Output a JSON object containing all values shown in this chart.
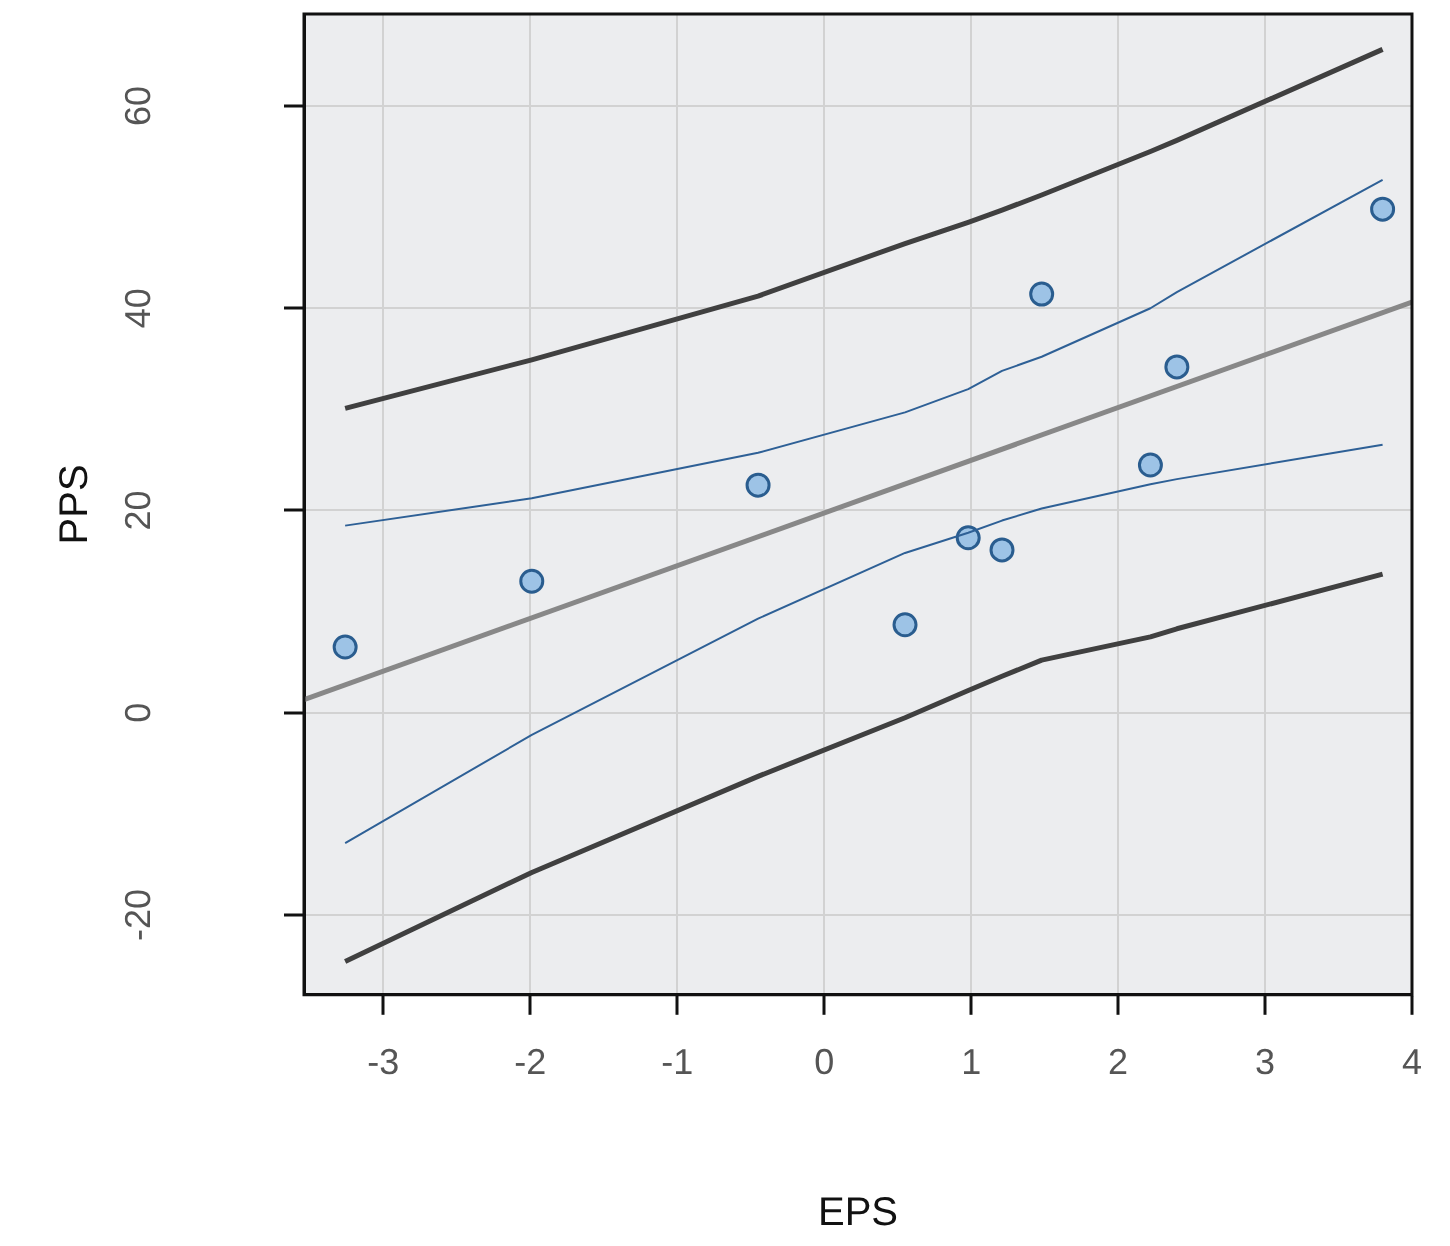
{
  "chart_data": {
    "type": "scatter",
    "xlabel": "EPS",
    "ylabel": "PPS",
    "xlim": [
      -3.54,
      4.0
    ],
    "ylim": [
      -27.9,
      69.1
    ],
    "xticks": [
      -3,
      -2,
      -1,
      0,
      1,
      2,
      3,
      4
    ],
    "yticks": [
      -20,
      0,
      20,
      40,
      60
    ],
    "grid": true,
    "legend": false,
    "series": [
      {
        "type": "line",
        "color": "#888888",
        "x": [
          -3.54,
          4.0
        ],
        "values": [
          1.3,
          40.6
        ]
      },
      {
        "type": "line",
        "color": "#404040",
        "x": [
          -3.26,
          -1.99,
          -0.45,
          0.55,
          0.98,
          1.21,
          1.48,
          2.22,
          2.4,
          3.8
        ],
        "values": [
          30.1,
          34.9,
          41.2,
          46.4,
          48.5,
          49.7,
          51.2,
          55.5,
          56.6,
          65.6
        ]
      },
      {
        "type": "line",
        "color": "#404040",
        "x": [
          -3.26,
          -1.99,
          -0.45,
          0.55,
          0.98,
          1.21,
          1.48,
          2.22,
          2.4,
          3.8
        ],
        "values": [
          -24.6,
          -15.8,
          -6.3,
          -0.5,
          2.2,
          3.6,
          5.2,
          7.5,
          8.3,
          13.7
        ]
      },
      {
        "type": "line",
        "color": "#2e6096",
        "x": [
          -3.26,
          -1.99,
          -0.45,
          0.55,
          0.98,
          1.21,
          1.48,
          2.22,
          2.4,
          3.8
        ],
        "values": [
          18.5,
          21.2,
          25.7,
          29.7,
          32,
          33.8,
          35.2,
          40,
          41.6,
          52.7
        ]
      },
      {
        "type": "line",
        "color": "#2e6096",
        "x": [
          -3.26,
          -1.99,
          -0.45,
          0.55,
          0.98,
          1.21,
          1.48,
          2.22,
          2.4,
          3.8
        ],
        "values": [
          -12.9,
          -2.2,
          9.3,
          15.8,
          17.8,
          19,
          20.2,
          22.6,
          23.1,
          26.5
        ]
      },
      {
        "type": "scatter",
        "marker": "circle",
        "color": "#9dc3e6",
        "x": [
          -3.26,
          -1.99,
          -0.45,
          0.55,
          0.98,
          1.21,
          1.48,
          2.22,
          2.4,
          3.8
        ],
        "values": [
          6.5,
          13.0,
          22.5,
          8.7,
          17.3,
          16.1,
          41.4,
          24.5,
          34.2,
          49.8
        ]
      }
    ]
  }
}
